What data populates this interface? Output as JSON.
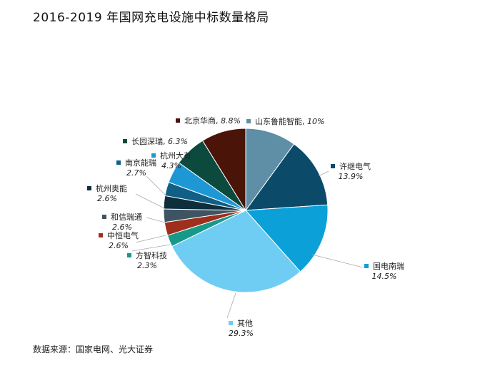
{
  "title": "2016-2019 年国网充电设施中标数量格局",
  "source": "数据来源：国家电网、光大证券",
  "chart_data": {
    "type": "pie",
    "title": "2016-2019 年国网充电设施中标数量格局",
    "start": "12 o'clock",
    "direction": "clockwise",
    "unit": "%",
    "slices": [
      {
        "label": "山东鲁能智能",
        "value": 10,
        "display": "10%",
        "color": "#5e8fa6"
      },
      {
        "label": "许继电气",
        "value": 13.9,
        "display": "13.9%",
        "color": "#0c4a69"
      },
      {
        "label": "国电南瑞",
        "value": 14.5,
        "display": "14.5%",
        "color": "#0ba0d8"
      },
      {
        "label": "其他",
        "value": 29.3,
        "display": "29.3%",
        "color": "#6fcdf4"
      },
      {
        "label": "方智科技",
        "value": 2.3,
        "display": "2.3%",
        "color": "#17998a"
      },
      {
        "label": "中恒电气",
        "value": 2.6,
        "display": "2.6%",
        "color": "#9e2f1c"
      },
      {
        "label": "和信瑞通",
        "value": 2.6,
        "display": "2.6%",
        "color": "#3e5463"
      },
      {
        "label": "杭州奥能",
        "value": 2.6,
        "display": "2.6%",
        "color": "#0e2e3c"
      },
      {
        "label": "南京能瑞",
        "value": 2.7,
        "display": "2.7%",
        "color": "#105f86"
      },
      {
        "label": "杭州大有",
        "value": 4.3,
        "display": "4.3%",
        "color": "#1e98d4"
      },
      {
        "label": "长园深瑞",
        "value": 6.3,
        "display": "6.3%",
        "color": "#0d4a3e"
      },
      {
        "label": "北京华商",
        "value": 8.8,
        "display": "8.8%",
        "color": "#4a1409"
      }
    ]
  }
}
